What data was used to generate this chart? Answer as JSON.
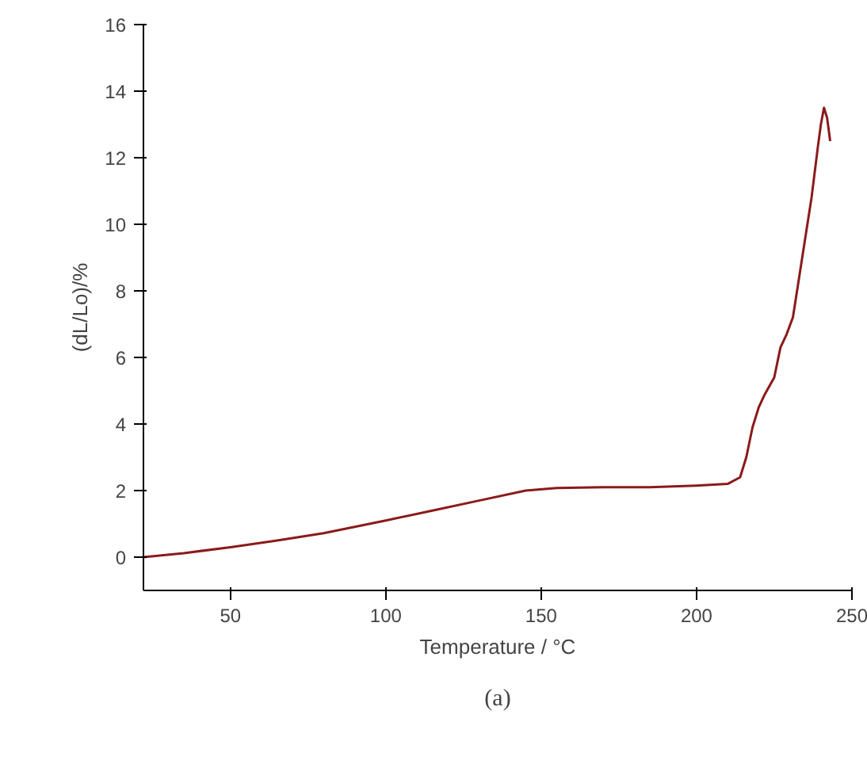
{
  "chart_data": {
    "type": "line",
    "xlabel": "Temperature / °C",
    "ylabel": "(dL/Lo)/%",
    "annotations": [
      "(a)"
    ],
    "xlim": [
      22,
      250
    ],
    "ylim": [
      -1,
      16
    ],
    "xticks": [
      50,
      100,
      150,
      200,
      250
    ],
    "yticks": [
      0,
      2,
      4,
      6,
      8,
      10,
      12,
      14,
      16
    ],
    "grid": false,
    "series": [
      {
        "color": "#8b1a1a",
        "x": [
          22,
          35,
          50,
          65,
          80,
          100,
          115,
          130,
          145,
          155,
          170,
          185,
          200,
          210,
          214,
          216,
          218,
          220,
          222,
          225,
          227,
          229,
          231,
          233,
          235,
          237,
          239,
          240,
          241,
          242,
          243
        ],
        "values": [
          0,
          0.12,
          0.3,
          0.5,
          0.72,
          1.1,
          1.4,
          1.7,
          2.0,
          2.08,
          2.1,
          2.1,
          2.15,
          2.2,
          2.4,
          3.0,
          3.9,
          4.5,
          4.9,
          5.4,
          6.3,
          6.7,
          7.2,
          8.4,
          9.6,
          10.8,
          12.3,
          13.0,
          13.5,
          13.2,
          12.5
        ]
      }
    ]
  }
}
